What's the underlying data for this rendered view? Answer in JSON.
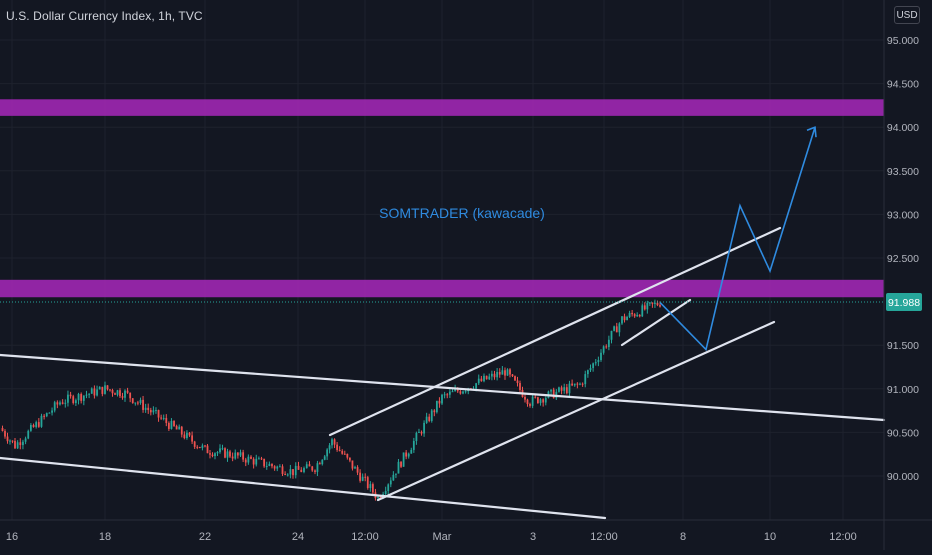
{
  "header": {
    "title": "U.S. Dollar Currency Index, 1h, TVC",
    "currency": "USD"
  },
  "colors": {
    "background": "#131722",
    "up": "#26a69a",
    "down": "#ef5350",
    "zone": "#9c27b0",
    "channel": "#dfe3ee",
    "projection": "#2f8be0",
    "last_price_tag": "#26a69a"
  },
  "chart_data": {
    "type": "candlestick",
    "title": "U.S. Dollar Currency Index, 1h, TVC",
    "y_axis": {
      "ticks": [
        "95.000",
        "94.500",
        "94.000",
        "93.500",
        "93.000",
        "92.500",
        "91.500",
        "91.000",
        "90.500",
        "90.000"
      ],
      "range": [
        89.72,
        95.13
      ],
      "position": "right"
    },
    "x_axis": {
      "ticks": [
        "16",
        "18",
        "22",
        "24",
        "12:00",
        "Mar",
        "3",
        "12:00",
        "8",
        "10",
        "12:00"
      ]
    },
    "last_price": "91.988",
    "annotation": "SOMTRADER (kawacade)",
    "resistance_zones": [
      {
        "low": 94.13,
        "high": 94.32
      },
      {
        "low": 92.05,
        "high": 92.25
      }
    ],
    "price_path": [
      {
        "date": "Feb 15",
        "close": 90.55
      },
      {
        "date": "Feb 16",
        "close": 90.35
      },
      {
        "date": "Feb 17",
        "close": 90.85
      },
      {
        "date": "Feb 18",
        "close": 91.0
      },
      {
        "date": "Feb 19",
        "close": 90.95
      },
      {
        "date": "Feb 22",
        "close": 90.3
      },
      {
        "date": "Feb 23",
        "close": 90.25
      },
      {
        "date": "Feb 24",
        "close": 90.05
      },
      {
        "date": "Feb 25",
        "close": 90.1
      },
      {
        "date": "Feb 26",
        "close": 90.4
      },
      {
        "date": "Feb 26 12:00",
        "close": 89.75
      },
      {
        "date": "Mar 1",
        "close": 90.9
      },
      {
        "date": "Mar 2",
        "close": 91.2
      },
      {
        "date": "Mar 3",
        "close": 90.85
      },
      {
        "date": "Mar 4",
        "close": 91.05
      },
      {
        "date": "Mar 5",
        "close": 91.8
      },
      {
        "date": "Mar 7",
        "close": 91.99
      }
    ],
    "projection_path": [
      {
        "date": "Mar 7",
        "price": 91.99
      },
      {
        "date": "Mar 8",
        "price": 91.45
      },
      {
        "date": "Mar 9",
        "price": 93.1
      },
      {
        "date": "Mar 10",
        "price": 92.35
      },
      {
        "date": "Mar 11",
        "price": 94.0
      }
    ],
    "grid": true,
    "legend": "none"
  }
}
